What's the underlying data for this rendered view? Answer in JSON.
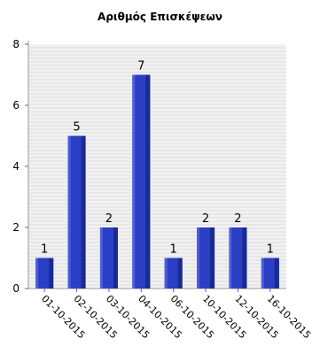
{
  "chart_data": {
    "type": "bar",
    "title": "Αριθμός Επισκέψεων",
    "categories": [
      "01-10-2015",
      "02-10-2015",
      "03-10-2015",
      "04-10-2015",
      "06-10-2015",
      "10-10-2015",
      "12-10-2015",
      "16-10-2015"
    ],
    "values": [
      1,
      5,
      2,
      7,
      1,
      2,
      2,
      1
    ],
    "ylim": [
      0,
      8
    ],
    "yticks": [
      0,
      2,
      4,
      6,
      8
    ],
    "xlabel": "",
    "ylabel": "",
    "grid": true,
    "bar_color": "#2b3fc4",
    "bar_shade": "#1a2a8f"
  }
}
